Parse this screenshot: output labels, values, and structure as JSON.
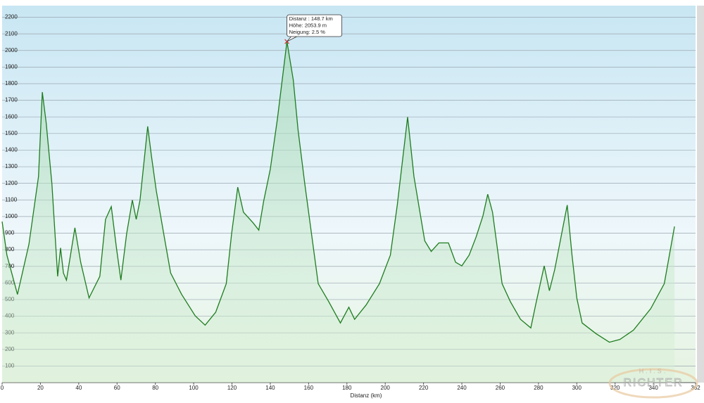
{
  "chart_data": {
    "type": "area",
    "x_label": "Distanz  (km)",
    "color": "#1e7d1e",
    "grid": true,
    "xlim": [
      0,
      362
    ],
    "ylim": [
      0,
      2270
    ],
    "xticks": [
      0,
      20,
      40,
      60,
      80,
      100,
      120,
      140,
      160,
      180,
      200,
      220,
      240,
      260,
      280,
      300,
      320,
      340,
      362
    ],
    "yticks": [
      100,
      200,
      300,
      400,
      500,
      600,
      700,
      800,
      900,
      1000,
      1100,
      1200,
      1300,
      1400,
      1500,
      1600,
      1700,
      1800,
      1900,
      2000,
      2100,
      2200
    ],
    "tooltip": {
      "x": 148.7,
      "y": 2053.9,
      "lines": [
        "Distanz : 148.7 km",
        "Höhe: 2053.9 m",
        "Neigung: 2.5 %"
      ]
    },
    "watermark": [
      "H.I.S.",
      "RICHTER"
    ],
    "x": [
      0,
      2.5,
      8,
      14,
      19,
      21,
      23,
      26,
      29,
      30.5,
      32,
      33.6,
      38,
      41,
      45.4,
      51,
      54,
      57,
      59.7,
      62,
      65,
      68,
      70,
      72,
      76,
      78,
      80.5,
      85,
      88,
      93.7,
      100.8,
      106,
      111.5,
      117,
      119.8,
      123,
      126,
      131,
      134,
      136.5,
      140,
      143.7,
      148.7,
      152,
      154.5,
      158,
      165,
      170.5,
      176.6,
      181,
      184,
      190,
      197,
      202.7,
      206.3,
      211.7,
      215,
      220.6,
      224,
      228,
      233,
      236.7,
      240,
      243.8,
      247.4,
      251,
      253.5,
      256,
      261,
      265.3,
      270.6,
      276,
      278.5,
      283,
      285.7,
      288.5,
      295,
      297.5,
      300,
      302.8,
      310,
      317,
      322.5,
      329.6,
      338.6,
      345.7,
      351
    ],
    "values": [
      970,
      768,
      531,
      833,
      1241,
      1749,
      1564,
      1198,
      640,
      811,
      660,
      617,
      932,
      725,
      510,
      640,
      983,
      1060,
      811,
      617,
      897,
      1099,
      983,
      1099,
      1543,
      1362,
      1155,
      854,
      660,
      531,
      402,
      346,
      424,
      596,
      897,
      1177,
      1026,
      962,
      918,
      1090,
      1284,
      1586,
      2054,
      1822,
      1521,
      1198,
      596,
      488,
      359,
      454,
      381,
      467,
      596,
      768,
      1069,
      1599,
      1241,
      854,
      790,
      841,
      841,
      725,
      703,
      768,
      876,
      1004,
      1134,
      1026,
      596,
      488,
      381,
      329,
      467,
      703,
      553,
      682,
      1069,
      768,
      510,
      359,
      295,
      243,
      260,
      316,
      445,
      596,
      940
    ]
  }
}
